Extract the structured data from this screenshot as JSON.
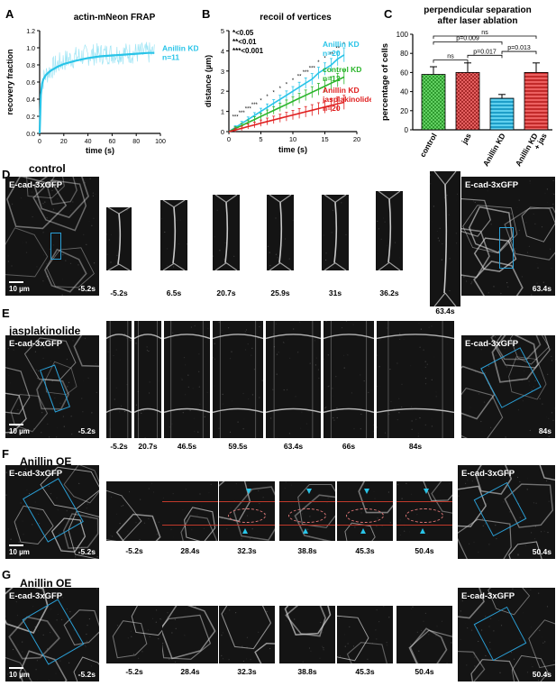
{
  "panelA": {
    "label": "A",
    "title": "actin-mNeon FRAP",
    "legend_name": "Anillin KD",
    "legend_n": "n=11"
  },
  "panelB": {
    "label": "B",
    "title": "recoil of vertices",
    "sig1": "*<0.05",
    "sig2": "**<0.01",
    "sig3": "***<0.001",
    "legend": [
      {
        "name": "Anillin KD",
        "n": "n=20",
        "color": "#29c4e8"
      },
      {
        "name": "control KD",
        "n": "n=12",
        "color": "#2bb52b"
      },
      {
        "name": "Anillin KD jasplakinolide",
        "name1": "Anillin KD",
        "name2": "jasplakinolide",
        "n": "n=20",
        "color": "#e02020"
      }
    ],
    "stars": [
      "*",
      "***",
      "***",
      "***",
      "***",
      "*",
      "*",
      "*",
      "*",
      "*",
      "*",
      "**",
      "***",
      "***",
      "*",
      "*",
      "**",
      "**",
      "*"
    ]
  },
  "panelC": {
    "label": "C",
    "title1": "perpendicular separation",
    "title2": "after laser ablation",
    "ns_top": "ns",
    "p1": "p=0.009",
    "ns_left": "ns",
    "p2": "p=0.017",
    "p3": "p=0.013",
    "xlab4a": "Anillin KD",
    "xlab4b": "+ jas"
  },
  "chart_data": [
    {
      "type": "line",
      "title": "actin-mNeon FRAP",
      "xlabel": "time (s)",
      "ylabel": "recovery fraction",
      "xlim": [
        0,
        100
      ],
      "ylim": [
        0,
        1.2
      ],
      "xticks": [
        0,
        20,
        40,
        60,
        80,
        100
      ],
      "yticks": [
        0.0,
        0.2,
        0.4,
        0.6,
        0.8,
        1.0,
        1.2
      ],
      "series": [
        {
          "name": "Anillin KD",
          "x": [
            0,
            1,
            2,
            3,
            5,
            8,
            10,
            15,
            20,
            30,
            40,
            50,
            60,
            70,
            80,
            90,
            95
          ],
          "values": [
            0,
            0.45,
            0.58,
            0.63,
            0.68,
            0.72,
            0.74,
            0.78,
            0.81,
            0.85,
            0.88,
            0.9,
            0.91,
            0.92,
            0.93,
            0.94,
            0.94
          ]
        }
      ]
    },
    {
      "type": "line",
      "title": "recoil of vertices",
      "xlabel": "time (s)",
      "ylabel": "distance (µm)",
      "xlim": [
        0,
        20
      ],
      "ylim": [
        0,
        5
      ],
      "xticks": [
        0,
        5,
        10,
        15,
        20
      ],
      "yticks": [
        0,
        1,
        2,
        3,
        4,
        5
      ],
      "x": [
        0,
        1,
        2,
        3,
        4,
        5,
        6,
        7,
        8,
        9,
        10,
        11,
        12,
        13,
        14,
        15,
        16,
        17,
        18
      ],
      "series": [
        {
          "name": "Anillin KD",
          "values": [
            0,
            0.2,
            0.4,
            0.6,
            0.8,
            1.0,
            1.2,
            1.4,
            1.6,
            1.8,
            2.0,
            2.2,
            2.4,
            2.6,
            2.9,
            3.1,
            3.3,
            3.6,
            3.8
          ]
        },
        {
          "name": "control KD",
          "values": [
            0,
            0.15,
            0.3,
            0.45,
            0.6,
            0.75,
            0.9,
            1.05,
            1.2,
            1.35,
            1.5,
            1.65,
            1.8,
            1.95,
            2.1,
            2.25,
            2.4,
            2.55,
            2.7
          ]
        },
        {
          "name": "Anillin KD jasplakinolide",
          "values": [
            0,
            0.08,
            0.16,
            0.25,
            0.33,
            0.42,
            0.5,
            0.58,
            0.66,
            0.74,
            0.82,
            0.9,
            0.98,
            1.06,
            1.14,
            1.22,
            1.3,
            1.38,
            1.45
          ]
        }
      ]
    },
    {
      "type": "bar",
      "title": "perpendicular separation after laser ablation",
      "ylabel": "percentage of cells",
      "categories": [
        "control",
        "jas",
        "Anillin KD",
        "Anillin KD + jas"
      ],
      "values": [
        58,
        60,
        33,
        60
      ],
      "errors": [
        8,
        10,
        4,
        10
      ],
      "colors": [
        "#36b336",
        "#c43c3c",
        "#2fb8e0",
        "#d63a3a"
      ],
      "ylim": [
        0,
        100
      ],
      "yticks": [
        0,
        20,
        40,
        60,
        80,
        100
      ]
    }
  ],
  "rows": {
    "D": {
      "label": "D",
      "title": "control",
      "channel": "E-cad-3xGFP",
      "scale": "10 µm",
      "left_time": "-5.2s",
      "right_time": "63.4s",
      "times": [
        "-5.2s",
        "6.5s",
        "20.7s",
        "25.9s",
        "31s",
        "36.2s",
        "63.4s"
      ]
    },
    "E": {
      "label": "E",
      "title": "jasplakinolide",
      "channel": "E-cad-3xGFP",
      "scale": "10 µm",
      "left_time": "-5.2s",
      "right_time": "84s",
      "times": [
        "-5.2s",
        "20.7s",
        "46.5s",
        "59.5s",
        "63.4s",
        "66s",
        "84s"
      ]
    },
    "F": {
      "label": "F",
      "title": "Anillin OE",
      "channel": "E-cad-3xGFP",
      "scale": "10 µm",
      "left_time": "-5.2s",
      "right_time": "50.4s",
      "times": [
        "-5.2s",
        "28.4s",
        "32.3s",
        "38.8s",
        "45.3s",
        "50.4s"
      ]
    },
    "G": {
      "label": "G",
      "title": "Anillin OE",
      "channel": "E-cad-3xGFP",
      "scale": "10 µm",
      "left_time": "-5.2s",
      "right_time": "50.4s",
      "times": [
        "-5.2s",
        "28.4s",
        "32.3s",
        "38.8s",
        "45.3s",
        "50.4s"
      ]
    }
  },
  "colors": {
    "cyan": "#29c4e8",
    "green": "#2bb52b",
    "red": "#e02020",
    "roi": "#2a9fd6"
  }
}
